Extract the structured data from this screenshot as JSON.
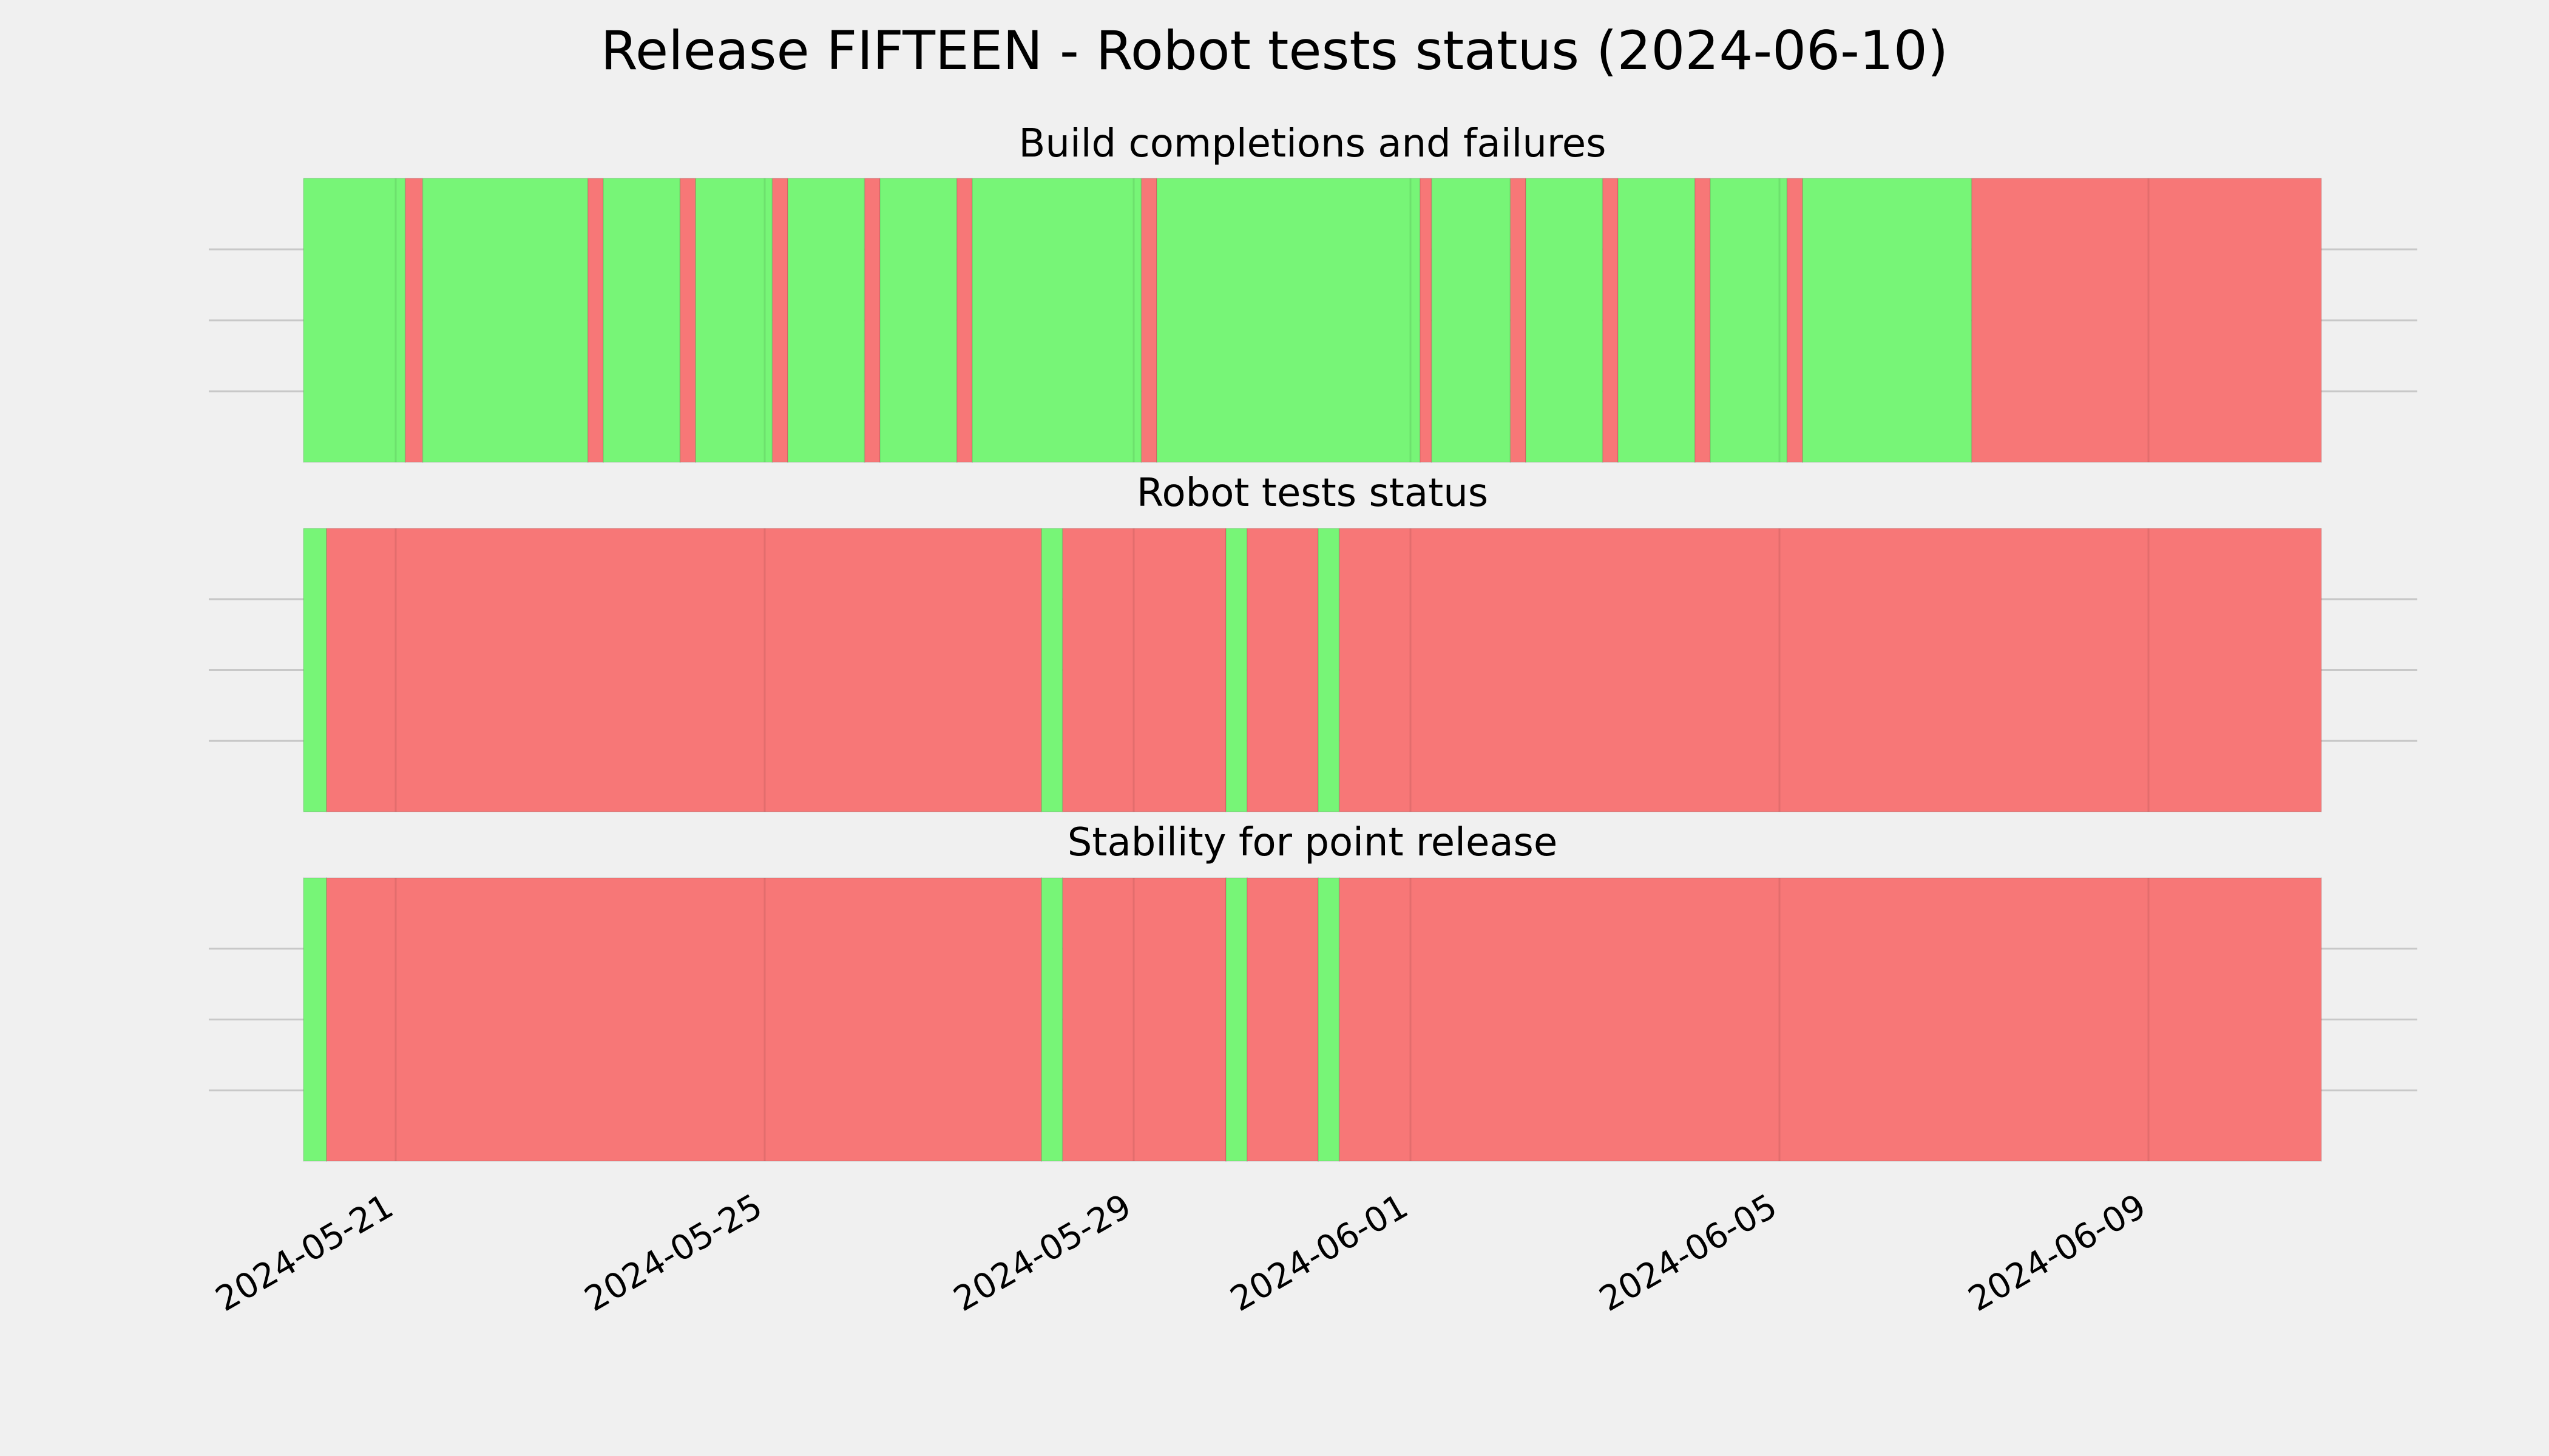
{
  "chart_data": {
    "type": "timeline",
    "title": "Release FIFTEEN - Robot tests status (2024-06-10)",
    "x_axis": {
      "type": "date",
      "range": [
        "2024-05-20 00:00",
        "2024-06-10 21:00"
      ],
      "ticks": [
        "2024-05-21",
        "2024-05-25",
        "2024-05-29",
        "2024-06-01",
        "2024-06-05",
        "2024-06-09"
      ],
      "tick_label_rotation": 30
    },
    "colors": {
      "pass": "#77f577",
      "fail": "#f77777",
      "background": "#f0f0f0"
    },
    "grid": true,
    "panels": [
      {
        "title": "Build completions and failures",
        "segments": [
          {
            "start": "2024-05-20 00:00",
            "end": "2024-05-21 02:30",
            "status": "pass"
          },
          {
            "start": "2024-05-21 02:30",
            "end": "2024-05-21 07:00",
            "status": "fail"
          },
          {
            "start": "2024-05-21 07:00",
            "end": "2024-05-23 02:00",
            "status": "pass"
          },
          {
            "start": "2024-05-23 02:00",
            "end": "2024-05-23 06:00",
            "status": "fail"
          },
          {
            "start": "2024-05-23 06:00",
            "end": "2024-05-24 02:00",
            "status": "pass"
          },
          {
            "start": "2024-05-24 02:00",
            "end": "2024-05-24 06:00",
            "status": "fail"
          },
          {
            "start": "2024-05-24 06:00",
            "end": "2024-05-25 02:00",
            "status": "pass"
          },
          {
            "start": "2024-05-25 02:00",
            "end": "2024-05-25 06:00",
            "status": "fail"
          },
          {
            "start": "2024-05-25 06:00",
            "end": "2024-05-26 02:00",
            "status": "pass"
          },
          {
            "start": "2024-05-26 02:00",
            "end": "2024-05-26 06:00",
            "status": "fail"
          },
          {
            "start": "2024-05-26 06:00",
            "end": "2024-05-27 02:00",
            "status": "pass"
          },
          {
            "start": "2024-05-27 02:00",
            "end": "2024-05-27 06:00",
            "status": "fail"
          },
          {
            "start": "2024-05-27 06:00",
            "end": "2024-05-29 02:00",
            "status": "pass"
          },
          {
            "start": "2024-05-29 02:00",
            "end": "2024-05-29 06:00",
            "status": "fail"
          },
          {
            "start": "2024-05-29 06:00",
            "end": "2024-06-01 02:30",
            "status": "pass"
          },
          {
            "start": "2024-06-01 02:30",
            "end": "2024-06-01 05:30",
            "status": "fail"
          },
          {
            "start": "2024-06-01 05:30",
            "end": "2024-06-02 02:00",
            "status": "pass"
          },
          {
            "start": "2024-06-02 02:00",
            "end": "2024-06-02 06:00",
            "status": "fail"
          },
          {
            "start": "2024-06-02 06:00",
            "end": "2024-06-03 02:00",
            "status": "pass"
          },
          {
            "start": "2024-06-03 02:00",
            "end": "2024-06-03 06:00",
            "status": "fail"
          },
          {
            "start": "2024-06-03 06:00",
            "end": "2024-06-04 02:00",
            "status": "pass"
          },
          {
            "start": "2024-06-04 02:00",
            "end": "2024-06-04 06:00",
            "status": "fail"
          },
          {
            "start": "2024-06-04 06:00",
            "end": "2024-06-05 02:00",
            "status": "pass"
          },
          {
            "start": "2024-06-05 02:00",
            "end": "2024-06-05 06:00",
            "status": "fail"
          },
          {
            "start": "2024-06-05 06:00",
            "end": "2024-06-07 02:00",
            "status": "pass"
          },
          {
            "start": "2024-06-07 02:00",
            "end": "2024-06-10 21:00",
            "status": "fail"
          }
        ]
      },
      {
        "title": "Robot tests status",
        "segments": [
          {
            "start": "2024-05-20 00:00",
            "end": "2024-05-20 06:00",
            "status": "pass"
          },
          {
            "start": "2024-05-20 06:00",
            "end": "2024-05-28 00:00",
            "status": "fail"
          },
          {
            "start": "2024-05-28 00:00",
            "end": "2024-05-28 05:30",
            "status": "pass"
          },
          {
            "start": "2024-05-28 05:30",
            "end": "2024-05-30 00:00",
            "status": "fail"
          },
          {
            "start": "2024-05-30 00:00",
            "end": "2024-05-30 05:30",
            "status": "pass"
          },
          {
            "start": "2024-05-30 05:30",
            "end": "2024-05-31 00:00",
            "status": "fail"
          },
          {
            "start": "2024-05-31 00:00",
            "end": "2024-05-31 05:30",
            "status": "pass"
          },
          {
            "start": "2024-05-31 05:30",
            "end": "2024-06-10 21:00",
            "status": "fail"
          }
        ]
      },
      {
        "title": "Stability for point release",
        "segments": [
          {
            "start": "2024-05-20 00:00",
            "end": "2024-05-20 06:00",
            "status": "pass"
          },
          {
            "start": "2024-05-20 06:00",
            "end": "2024-05-28 00:00",
            "status": "fail"
          },
          {
            "start": "2024-05-28 00:00",
            "end": "2024-05-28 05:30",
            "status": "pass"
          },
          {
            "start": "2024-05-28 05:30",
            "end": "2024-05-30 00:00",
            "status": "fail"
          },
          {
            "start": "2024-05-30 00:00",
            "end": "2024-05-30 05:30",
            "status": "pass"
          },
          {
            "start": "2024-05-30 05:30",
            "end": "2024-05-31 00:00",
            "status": "fail"
          },
          {
            "start": "2024-05-31 00:00",
            "end": "2024-05-31 05:30",
            "status": "pass"
          },
          {
            "start": "2024-05-31 05:30",
            "end": "2024-06-10 21:00",
            "status": "fail"
          }
        ]
      }
    ]
  }
}
